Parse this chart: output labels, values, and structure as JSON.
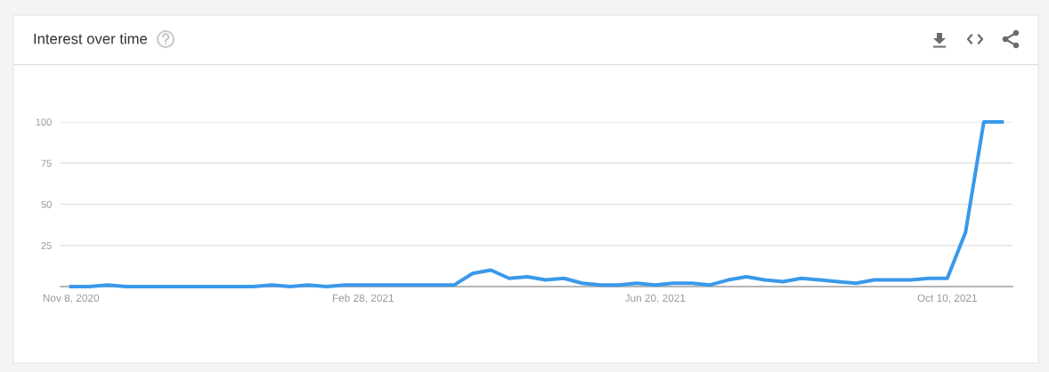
{
  "chart_data": {
    "type": "line",
    "title": "Interest over time",
    "x": [
      "2020-11-08",
      "2020-11-15",
      "2020-11-22",
      "2020-11-29",
      "2020-12-06",
      "2020-12-13",
      "2020-12-20",
      "2020-12-27",
      "2021-01-03",
      "2021-01-10",
      "2021-01-17",
      "2021-01-24",
      "2021-01-31",
      "2021-02-07",
      "2021-02-14",
      "2021-02-21",
      "2021-02-28",
      "2021-03-07",
      "2021-03-14",
      "2021-03-21",
      "2021-03-28",
      "2021-04-04",
      "2021-04-11",
      "2021-04-18",
      "2021-04-25",
      "2021-05-02",
      "2021-05-09",
      "2021-05-16",
      "2021-05-23",
      "2021-05-30",
      "2021-06-06",
      "2021-06-13",
      "2021-06-20",
      "2021-06-27",
      "2021-07-04",
      "2021-07-11",
      "2021-07-18",
      "2021-07-25",
      "2021-08-01",
      "2021-08-08",
      "2021-08-15",
      "2021-08-22",
      "2021-08-29",
      "2021-09-05",
      "2021-09-12",
      "2021-09-19",
      "2021-09-26",
      "2021-10-03",
      "2021-10-10",
      "2021-10-17",
      "2021-10-24",
      "2021-10-31"
    ],
    "series": [
      {
        "color": "#3a99ea",
        "values": [
          0,
          0,
          1,
          0,
          0,
          0,
          0,
          0,
          0,
          0,
          0,
          1,
          0,
          1,
          0,
          1,
          1,
          1,
          1,
          1,
          1,
          1,
          8,
          10,
          5,
          6,
          4,
          5,
          2,
          1,
          1,
          2,
          1,
          2,
          2,
          1,
          4,
          6,
          4,
          3,
          5,
          4,
          3,
          2,
          4,
          4,
          4,
          5,
          5,
          33,
          100,
          100
        ]
      }
    ],
    "xlim": [
      "2020-11-04",
      "2021-11-04"
    ],
    "xticks": [
      {
        "value": "2020-11-08",
        "label": "Nov 8, 2020"
      },
      {
        "value": "2021-02-28",
        "label": "Feb 28, 2021"
      },
      {
        "value": "2021-06-20",
        "label": "Jun 20, 2021"
      },
      {
        "value": "2021-10-10",
        "label": "Oct 10, 2021"
      }
    ],
    "ylim": [
      0,
      100
    ],
    "yticks": [
      25,
      50,
      75,
      100
    ],
    "grid": "y",
    "line_style": "solid"
  }
}
